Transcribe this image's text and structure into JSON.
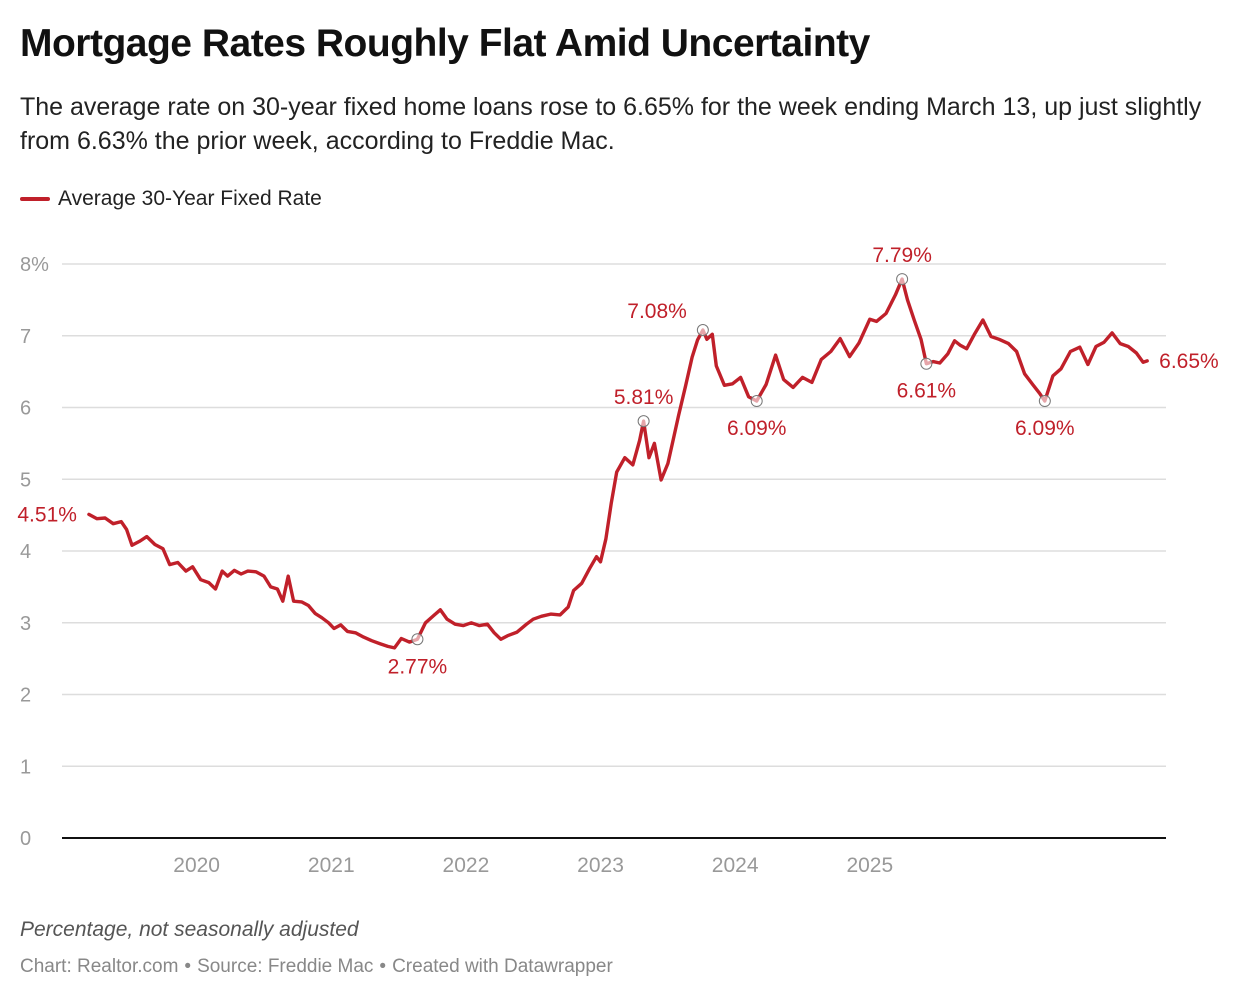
{
  "title": "Mortgage Rates Roughly Flat Amid Uncertainty",
  "subtitle": "The average rate on 30-year fixed home loans rose to 6.65% for the week ending March 13, up just slightly from 6.63% the prior week, according to Freddie Mac.",
  "legend_label": "Average 30-Year Fixed Rate",
  "note": "Percentage, not seasonally adjusted",
  "footer": {
    "chart_credit": "Chart: Realtor.com",
    "source": "Source: Freddie Mac",
    "created": "Created with Datawrapper",
    "separator": "•"
  },
  "colors": {
    "series": "#c0202a",
    "grid": "#dddddd",
    "axis": "#111111",
    "tick": "#999999"
  },
  "chart_data": {
    "type": "line",
    "series": [
      {
        "name": "Average 30-Year Fixed Rate",
        "points": [
          [
            2019.2,
            4.51
          ],
          [
            2019.26,
            4.45
          ],
          [
            2019.32,
            4.46
          ],
          [
            2019.38,
            4.38
          ],
          [
            2019.44,
            4.41
          ],
          [
            2019.48,
            4.3
          ],
          [
            2019.52,
            4.08
          ],
          [
            2019.58,
            4.14
          ],
          [
            2019.63,
            4.2
          ],
          [
            2019.69,
            4.09
          ],
          [
            2019.75,
            4.03
          ],
          [
            2019.8,
            3.81
          ],
          [
            2019.86,
            3.84
          ],
          [
            2019.92,
            3.72
          ],
          [
            2019.97,
            3.78
          ],
          [
            2020.03,
            3.6
          ],
          [
            2020.09,
            3.56
          ],
          [
            2020.14,
            3.47
          ],
          [
            2020.19,
            3.72
          ],
          [
            2020.23,
            3.65
          ],
          [
            2020.28,
            3.73
          ],
          [
            2020.33,
            3.68
          ],
          [
            2020.38,
            3.72
          ],
          [
            2020.44,
            3.71
          ],
          [
            2020.5,
            3.65
          ],
          [
            2020.55,
            3.5
          ],
          [
            2020.6,
            3.47
          ],
          [
            2020.64,
            3.3
          ],
          [
            2020.68,
            3.65
          ],
          [
            2020.72,
            3.3
          ],
          [
            2020.78,
            3.29
          ],
          [
            2020.83,
            3.24
          ],
          [
            2020.88,
            3.13
          ],
          [
            2020.93,
            3.07
          ],
          [
            2020.98,
            3.0
          ],
          [
            2021.02,
            2.92
          ],
          [
            2021.07,
            2.97
          ],
          [
            2021.12,
            2.88
          ],
          [
            2021.18,
            2.86
          ],
          [
            2021.24,
            2.8
          ],
          [
            2021.3,
            2.75
          ],
          [
            2021.36,
            2.71
          ],
          [
            2021.42,
            2.67
          ],
          [
            2021.47,
            2.65
          ],
          [
            2021.52,
            2.78
          ],
          [
            2021.58,
            2.73
          ],
          [
            2021.64,
            2.77
          ],
          [
            2021.7,
            3.0
          ],
          [
            2021.76,
            3.1
          ],
          [
            2021.81,
            3.18
          ],
          [
            2021.86,
            3.05
          ],
          [
            2021.92,
            2.98
          ],
          [
            2021.98,
            2.96
          ],
          [
            2022.04,
            3.0
          ],
          [
            2022.1,
            2.96
          ],
          [
            2022.16,
            2.98
          ],
          [
            2022.21,
            2.86
          ],
          [
            2022.26,
            2.77
          ],
          [
            2022.31,
            2.82
          ],
          [
            2022.38,
            2.87
          ],
          [
            2022.45,
            2.98
          ],
          [
            2022.5,
            3.05
          ],
          [
            2022.56,
            3.09
          ],
          [
            2022.63,
            3.12
          ],
          [
            2022.7,
            3.11
          ],
          [
            2022.76,
            3.22
          ],
          [
            2022.8,
            3.45
          ],
          [
            2022.86,
            3.55
          ],
          [
            2022.92,
            3.76
          ],
          [
            2022.97,
            3.92
          ],
          [
            2023.0,
            3.85
          ],
          [
            2023.04,
            4.17
          ],
          [
            2023.08,
            4.67
          ],
          [
            2023.12,
            5.1
          ],
          [
            2023.18,
            5.3
          ],
          [
            2023.24,
            5.2
          ],
          [
            2023.29,
            5.54
          ],
          [
            2023.32,
            5.81
          ],
          [
            2023.36,
            5.3
          ],
          [
            2023.4,
            5.5
          ],
          [
            2023.45,
            4.99
          ],
          [
            2023.5,
            5.22
          ],
          [
            2023.54,
            5.55
          ],
          [
            2023.58,
            5.89
          ],
          [
            2023.63,
            6.29
          ],
          [
            2023.68,
            6.7
          ],
          [
            2023.72,
            6.94
          ],
          [
            2023.76,
            7.08
          ],
          [
            2023.79,
            6.95
          ],
          [
            2023.83,
            7.02
          ],
          [
            2023.86,
            6.58
          ],
          [
            2023.92,
            6.31
          ],
          [
            2023.98,
            6.33
          ],
          [
            2024.04,
            6.42
          ],
          [
            2024.1,
            6.15
          ],
          [
            2024.16,
            6.09
          ],
          [
            2024.23,
            6.32
          ],
          [
            2024.3,
            6.73
          ],
          [
            2024.36,
            6.39
          ],
          [
            2024.43,
            6.28
          ],
          [
            2024.5,
            6.42
          ],
          [
            2024.57,
            6.35
          ],
          [
            2024.64,
            6.67
          ],
          [
            2024.71,
            6.78
          ],
          [
            2024.78,
            6.96
          ],
          [
            2024.85,
            6.71
          ],
          [
            2024.92,
            6.9
          ],
          [
            2025.0,
            7.23
          ],
          [
            2025.05,
            7.2
          ],
          [
            2025.12,
            7.31
          ],
          [
            2025.19,
            7.57
          ],
          [
            2025.24,
            7.79
          ],
          [
            2025.28,
            7.5
          ],
          [
            2025.33,
            7.22
          ],
          [
            2025.38,
            6.95
          ],
          [
            2025.42,
            6.61
          ],
          [
            2025.47,
            6.64
          ],
          [
            2025.52,
            6.62
          ],
          [
            2025.58,
            6.75
          ],
          [
            2025.63,
            6.93
          ],
          [
            2025.67,
            6.87
          ],
          [
            2025.72,
            6.82
          ],
          [
            2025.78,
            7.03
          ],
          [
            2025.84,
            7.22
          ],
          [
            2025.9,
            6.99
          ],
          [
            2025.96,
            6.95
          ],
          [
            2026.03,
            6.89
          ],
          [
            2026.09,
            6.78
          ],
          [
            2026.15,
            6.47
          ],
          [
            2026.21,
            6.32
          ],
          [
            2026.26,
            6.2
          ],
          [
            2026.3,
            6.09
          ],
          [
            2026.36,
            6.44
          ],
          [
            2026.42,
            6.54
          ],
          [
            2026.49,
            6.78
          ],
          [
            2026.56,
            6.84
          ],
          [
            2026.62,
            6.6
          ],
          [
            2026.68,
            6.85
          ],
          [
            2026.74,
            6.91
          ],
          [
            2026.8,
            7.04
          ],
          [
            2026.86,
            6.89
          ],
          [
            2026.92,
            6.85
          ],
          [
            2026.98,
            6.76
          ],
          [
            2027.03,
            6.63
          ],
          [
            2027.06,
            6.65
          ]
        ]
      }
    ],
    "annotations": [
      {
        "x": 2019.2,
        "y": 4.51,
        "label": "4.51%",
        "pos": "left",
        "marker": false
      },
      {
        "x": 2021.64,
        "y": 2.77,
        "label": "2.77%",
        "pos": "below",
        "marker": true
      },
      {
        "x": 2023.32,
        "y": 5.81,
        "label": "5.81%",
        "pos": "above",
        "marker": true
      },
      {
        "x": 2023.76,
        "y": 7.08,
        "label": "7.08%",
        "pos": "above-left",
        "marker": true
      },
      {
        "x": 2024.16,
        "y": 6.09,
        "label": "6.09%",
        "pos": "below",
        "marker": true
      },
      {
        "x": 2025.24,
        "y": 7.79,
        "label": "7.79%",
        "pos": "above",
        "marker": true
      },
      {
        "x": 2025.42,
        "y": 6.61,
        "label": "6.61%",
        "pos": "below",
        "marker": true
      },
      {
        "x": 2026.3,
        "y": 6.09,
        "label": "6.09%",
        "pos": "below",
        "marker": true
      },
      {
        "x": 2027.06,
        "y": 6.65,
        "label": "6.65%",
        "pos": "right",
        "marker": false
      }
    ],
    "x_ticks": [
      {
        "value": 2020.0,
        "label": "2020"
      },
      {
        "value": 2021.0,
        "label": "2021"
      },
      {
        "value": 2022.0,
        "label": "2022"
      },
      {
        "value": 2023.0,
        "label": "2023"
      },
      {
        "value": 2024.0,
        "label": "2024"
      },
      {
        "value": 2025.0,
        "label": "2025"
      }
    ],
    "y_ticks": [
      {
        "value": 0,
        "label": "0"
      },
      {
        "value": 1,
        "label": "1"
      },
      {
        "value": 2,
        "label": "2"
      },
      {
        "value": 3,
        "label": "3"
      },
      {
        "value": 4,
        "label": "4"
      },
      {
        "value": 5,
        "label": "5"
      },
      {
        "value": 6,
        "label": "6"
      },
      {
        "value": 7,
        "label": "7"
      },
      {
        "value": 8,
        "label": "8%"
      }
    ],
    "xlim": [
      2019.0,
      2027.2
    ],
    "ylim": [
      0,
      8
    ],
    "grid": true,
    "legend": "top-left"
  }
}
